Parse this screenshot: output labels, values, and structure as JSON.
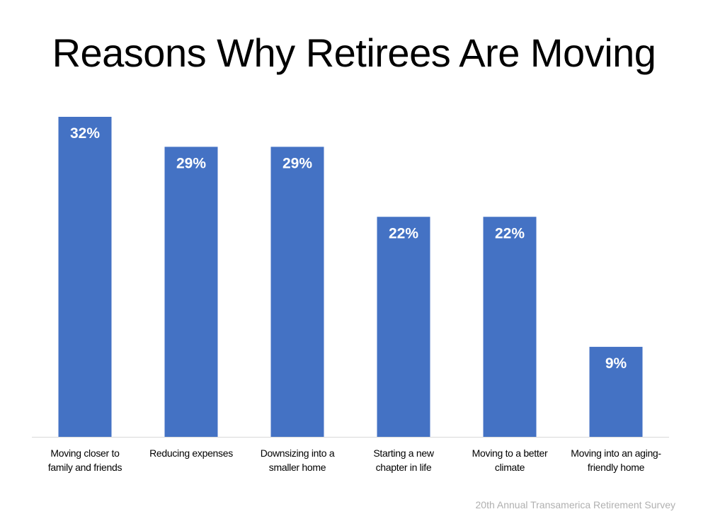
{
  "chart_data": {
    "type": "bar",
    "title": "Reasons Why Retirees Are Moving",
    "categories": [
      "Moving closer to\nfamily and friends",
      "Reducing expenses",
      "Downsizing into a\nsmaller home",
      "Starting a new\nchapter in life",
      "Moving to a better\nclimate",
      "Moving into an aging-\nfriendly home"
    ],
    "values": [
      32,
      29,
      29,
      22,
      22,
      9
    ],
    "data_labels": [
      "32%",
      "29%",
      "29%",
      "22%",
      "22%",
      "9%"
    ],
    "unit": "%",
    "xlabel": "",
    "ylabel": "",
    "ylim": [
      0,
      32
    ],
    "grid": false,
    "legend": "none",
    "colors": {
      "bar": "#4472C4",
      "label": "#FFFFFF",
      "axis": "#D9D9D9"
    }
  },
  "source": "20th Annual Transamerica Retirement Survey"
}
